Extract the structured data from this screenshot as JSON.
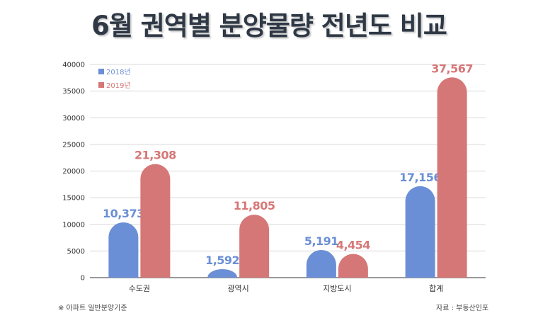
{
  "title": "6월 권역별 분양물량 전년도 비교",
  "footnote": "※ 아파트 일반분양기준",
  "source": "자료 : 부동산인포",
  "colors": {
    "s2018": "#6b8fd6",
    "s2019": "#d67777",
    "grid": "#d9d9d9",
    "axis": "#333333"
  },
  "chart_data": {
    "type": "bar",
    "categories": [
      "수도권",
      "광역시",
      "지방도시",
      "합계"
    ],
    "series": [
      {
        "name": "2018년",
        "values": [
          10373,
          1592,
          5191,
          17156
        ],
        "labels": [
          "10,373",
          "1,592",
          "5,191",
          "17,156"
        ]
      },
      {
        "name": "2019년",
        "values": [
          21308,
          11805,
          4454,
          37567
        ],
        "labels": [
          "21,308",
          "11,805",
          "4,454",
          "37,567"
        ]
      }
    ],
    "ylim": [
      0,
      40000
    ],
    "yticks": [
      "0",
      "5000",
      "10000",
      "15000",
      "20000",
      "25000",
      "30000",
      "35000",
      "40000"
    ],
    "grid": true,
    "legend": "top-left"
  }
}
